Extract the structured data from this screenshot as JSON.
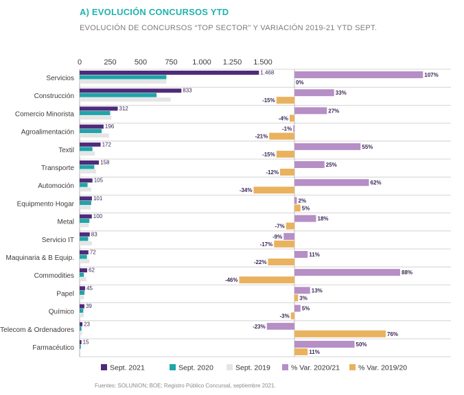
{
  "title": "A) EVOLUCIÓN CONCURSOS YTD",
  "subtitle": "EVOLUCIÓN DE CONCURSOS “TOP SECTOR” Y VARIACIÓN 2019-21 YTD SEPT.",
  "source": "Fuentes: SOLUNION; BOE; Registro Público Concursal, septiembre 2021.",
  "colors": {
    "sept2021": "#4f2b7a",
    "sept2020": "#1fa5a8",
    "sept2019": "#e5e5e5",
    "var2020_21": "#b68fc6",
    "var2019_20": "#e9b25f",
    "label_dark": "#3a2656"
  },
  "chart_data": [
    {
      "type": "bar",
      "orientation": "horizontal",
      "categories": [
        "Servicios",
        "Construcción",
        "Comercio Minorista",
        "Agroalimentación",
        "Textil",
        "Transporte",
        "Automoción",
        "Equipmento Hogar",
        "Metal",
        "Servicio  IT",
        "Maquinaria & B Equip.",
        "Commodities",
        "Papel",
        "Químico",
        "Telecom & Ordenadores",
        "Farmacéutico"
      ],
      "series": [
        {
          "name": "Sept. 2021",
          "values": [
            1468,
            833,
            312,
            196,
            172,
            158,
            105,
            101,
            100,
            83,
            72,
            62,
            45,
            39,
            23,
            15
          ]
        },
        {
          "name": "Sept. 2020",
          "values": [
            710,
            630,
            250,
            180,
            105,
            120,
            65,
            95,
            80,
            70,
            60,
            35,
            40,
            30,
            15,
            10
          ]
        },
        {
          "name": "Sept. 2019",
          "values": [
            710,
            745,
            260,
            240,
            125,
            135,
            95,
            90,
            75,
            100,
            80,
            55,
            35,
            35,
            20,
            8
          ]
        }
      ],
      "tick_labels": [
        "0",
        "250",
        "500",
        "750",
        "1.000",
        "1.250",
        "1.500"
      ],
      "xlim": [
        0,
        1500
      ],
      "data_labels": [
        "1.468",
        "833",
        "312",
        "196",
        "172",
        "158",
        "105",
        "101",
        "100",
        "83",
        "72",
        "62",
        "45",
        "39",
        "23",
        "15"
      ]
    },
    {
      "type": "bar",
      "orientation": "horizontal",
      "categories": [
        "Servicios",
        "Construcción",
        "Comercio Minorista",
        "Agroalimentación",
        "Textil",
        "Transporte",
        "Automoción",
        "Equipmento Hogar",
        "Metal",
        "Servicio  IT",
        "Maquinaria & B Equip.",
        "Commodities",
        "Papel",
        "Químico",
        "Telecom & Ordenadores",
        "Farmacéutico"
      ],
      "series": [
        {
          "name": "% Var. 2020/21",
          "values": [
            107,
            33,
            27,
            -1,
            55,
            25,
            62,
            2,
            18,
            -9,
            11,
            88,
            13,
            5,
            -23,
            50
          ],
          "labels": [
            "107%",
            "33%",
            "27%",
            "-1%",
            "55%",
            "25%",
            "62%",
            "2%",
            "18%",
            "-9%",
            "11%",
            "88%",
            "13%",
            "5%",
            "-23%",
            "50%"
          ]
        },
        {
          "name": "% Var. 2019/20",
          "values": [
            0,
            -15,
            -4,
            -21,
            -15,
            -12,
            -34,
            5,
            -7,
            -17,
            -22,
            -46,
            3,
            -3,
            76,
            11
          ],
          "labels": [
            "0%",
            "-15%",
            "-4%",
            "-21%",
            "-15%",
            "-12%",
            "-34%",
            "5%",
            "-7%",
            "-17%",
            "-22%",
            "-46%",
            "3%",
            "-3%",
            "76%",
            "11%"
          ]
        }
      ]
    }
  ],
  "legend": [
    {
      "label": "Sept. 2021",
      "color": "#4f2b7a"
    },
    {
      "label": "Sept. 2020",
      "color": "#1fa5a8"
    },
    {
      "label": "Sept. 2019",
      "color": "#e5e5e5"
    },
    {
      "label": "% Var. 2020/21",
      "color": "#b68fc6"
    },
    {
      "label": "% Var. 2019/20",
      "color": "#e9b25f"
    }
  ]
}
